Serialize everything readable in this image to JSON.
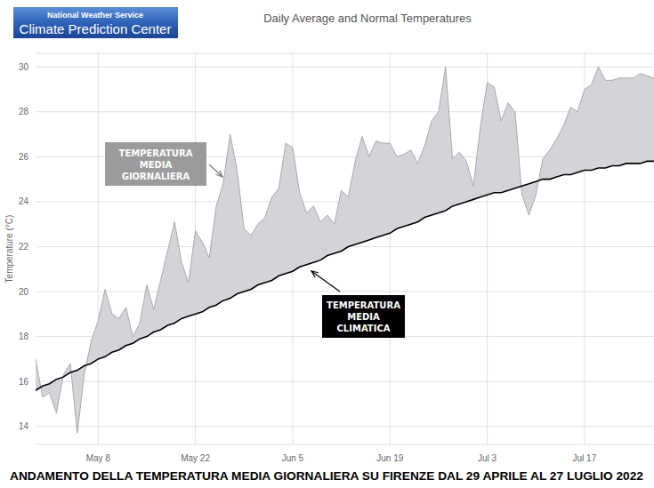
{
  "header": {
    "agency": "National Weather Service",
    "center": "Climate Prediction Center"
  },
  "caption": "ANDAMENTO DELLA TEMPERATURA MEDIA GIORNALIERA SU FIRENZE DAL 29 APRILE AL 27 LUGLIO 2022",
  "chart_data": {
    "type": "area",
    "title": "Daily Average and Normal Temperatures",
    "y_label": "Temperature (°C)",
    "categories": [
      null,
      null,
      null,
      null,
      null,
      null,
      null,
      null,
      null,
      "May 8",
      null,
      null,
      null,
      null,
      null,
      null,
      null,
      null,
      null,
      null,
      null,
      null,
      null,
      "May 22",
      null,
      null,
      null,
      null,
      null,
      null,
      null,
      null,
      null,
      null,
      null,
      null,
      null,
      "Jun 5",
      null,
      null,
      null,
      null,
      null,
      null,
      null,
      null,
      null,
      null,
      null,
      null,
      null,
      "Jun 19",
      null,
      null,
      null,
      null,
      null,
      null,
      null,
      null,
      null,
      null,
      null,
      null,
      null,
      "Jul 3",
      null,
      null,
      null,
      null,
      null,
      null,
      null,
      null,
      null,
      null,
      null,
      null,
      null,
      "Jul 17",
      null,
      null,
      null,
      null,
      null,
      null,
      null,
      null,
      null,
      null
    ],
    "series": [
      {
        "name": "TEMPERATURA MEDIA GIORNALIERA",
        "color": "#9b9b9b",
        "values": [
          17.0,
          15.3,
          15.5,
          14.6,
          16.3,
          16.8,
          13.7,
          16.3,
          17.8,
          18.7,
          20.1,
          19.0,
          18.8,
          19.3,
          18.0,
          18.6,
          20.3,
          19.2,
          20.5,
          21.8,
          23.1,
          21.3,
          20.4,
          22.7,
          22.2,
          21.5,
          23.8,
          24.8,
          27.0,
          25.4,
          22.8,
          22.5,
          23.0,
          23.3,
          24.2,
          24.6,
          26.6,
          26.4,
          24.4,
          23.5,
          23.8,
          23.1,
          23.4,
          23.0,
          24.5,
          24.2,
          25.8,
          26.9,
          26.0,
          26.7,
          26.6,
          26.6,
          26.0,
          26.1,
          26.3,
          25.7,
          26.5,
          27.6,
          28.0,
          30.0,
          25.9,
          26.2,
          25.8,
          24.7,
          27.3,
          29.3,
          29.1,
          27.6,
          28.4,
          28.0,
          24.3,
          23.4,
          24.3,
          25.9,
          26.3,
          26.8,
          27.4,
          28.2,
          28.0,
          29.0,
          29.2,
          30.0,
          29.4,
          29.4,
          29.5,
          29.5,
          29.5,
          29.7,
          29.6,
          29.5
        ]
      },
      {
        "name": "TEMPERATURA MEDIA CLIMATICA",
        "color": "#000000",
        "values": [
          15.6,
          15.8,
          15.9,
          16.1,
          16.2,
          16.4,
          16.5,
          16.7,
          16.8,
          17.0,
          17.1,
          17.3,
          17.4,
          17.6,
          17.7,
          17.9,
          18.0,
          18.2,
          18.3,
          18.5,
          18.6,
          18.8,
          18.9,
          19.0,
          19.1,
          19.3,
          19.4,
          19.6,
          19.7,
          19.9,
          20.0,
          20.1,
          20.3,
          20.4,
          20.5,
          20.7,
          20.8,
          20.9,
          21.1,
          21.2,
          21.3,
          21.4,
          21.6,
          21.7,
          21.8,
          22.0,
          22.1,
          22.2,
          22.3,
          22.4,
          22.5,
          22.6,
          22.8,
          22.9,
          23.0,
          23.1,
          23.3,
          23.4,
          23.5,
          23.6,
          23.8,
          23.9,
          24.0,
          24.1,
          24.2,
          24.3,
          24.4,
          24.4,
          24.5,
          24.6,
          24.7,
          24.8,
          24.9,
          25.0,
          25.0,
          25.1,
          25.2,
          25.2,
          25.3,
          25.4,
          25.4,
          25.5,
          25.5,
          25.6,
          25.6,
          25.7,
          25.7,
          25.7,
          25.8,
          25.8
        ]
      }
    ],
    "ylim": [
      13.2,
      30.6
    ],
    "yticks": [
      14,
      16,
      18,
      20,
      22,
      24,
      26,
      28,
      30
    ],
    "grid": true
  }
}
